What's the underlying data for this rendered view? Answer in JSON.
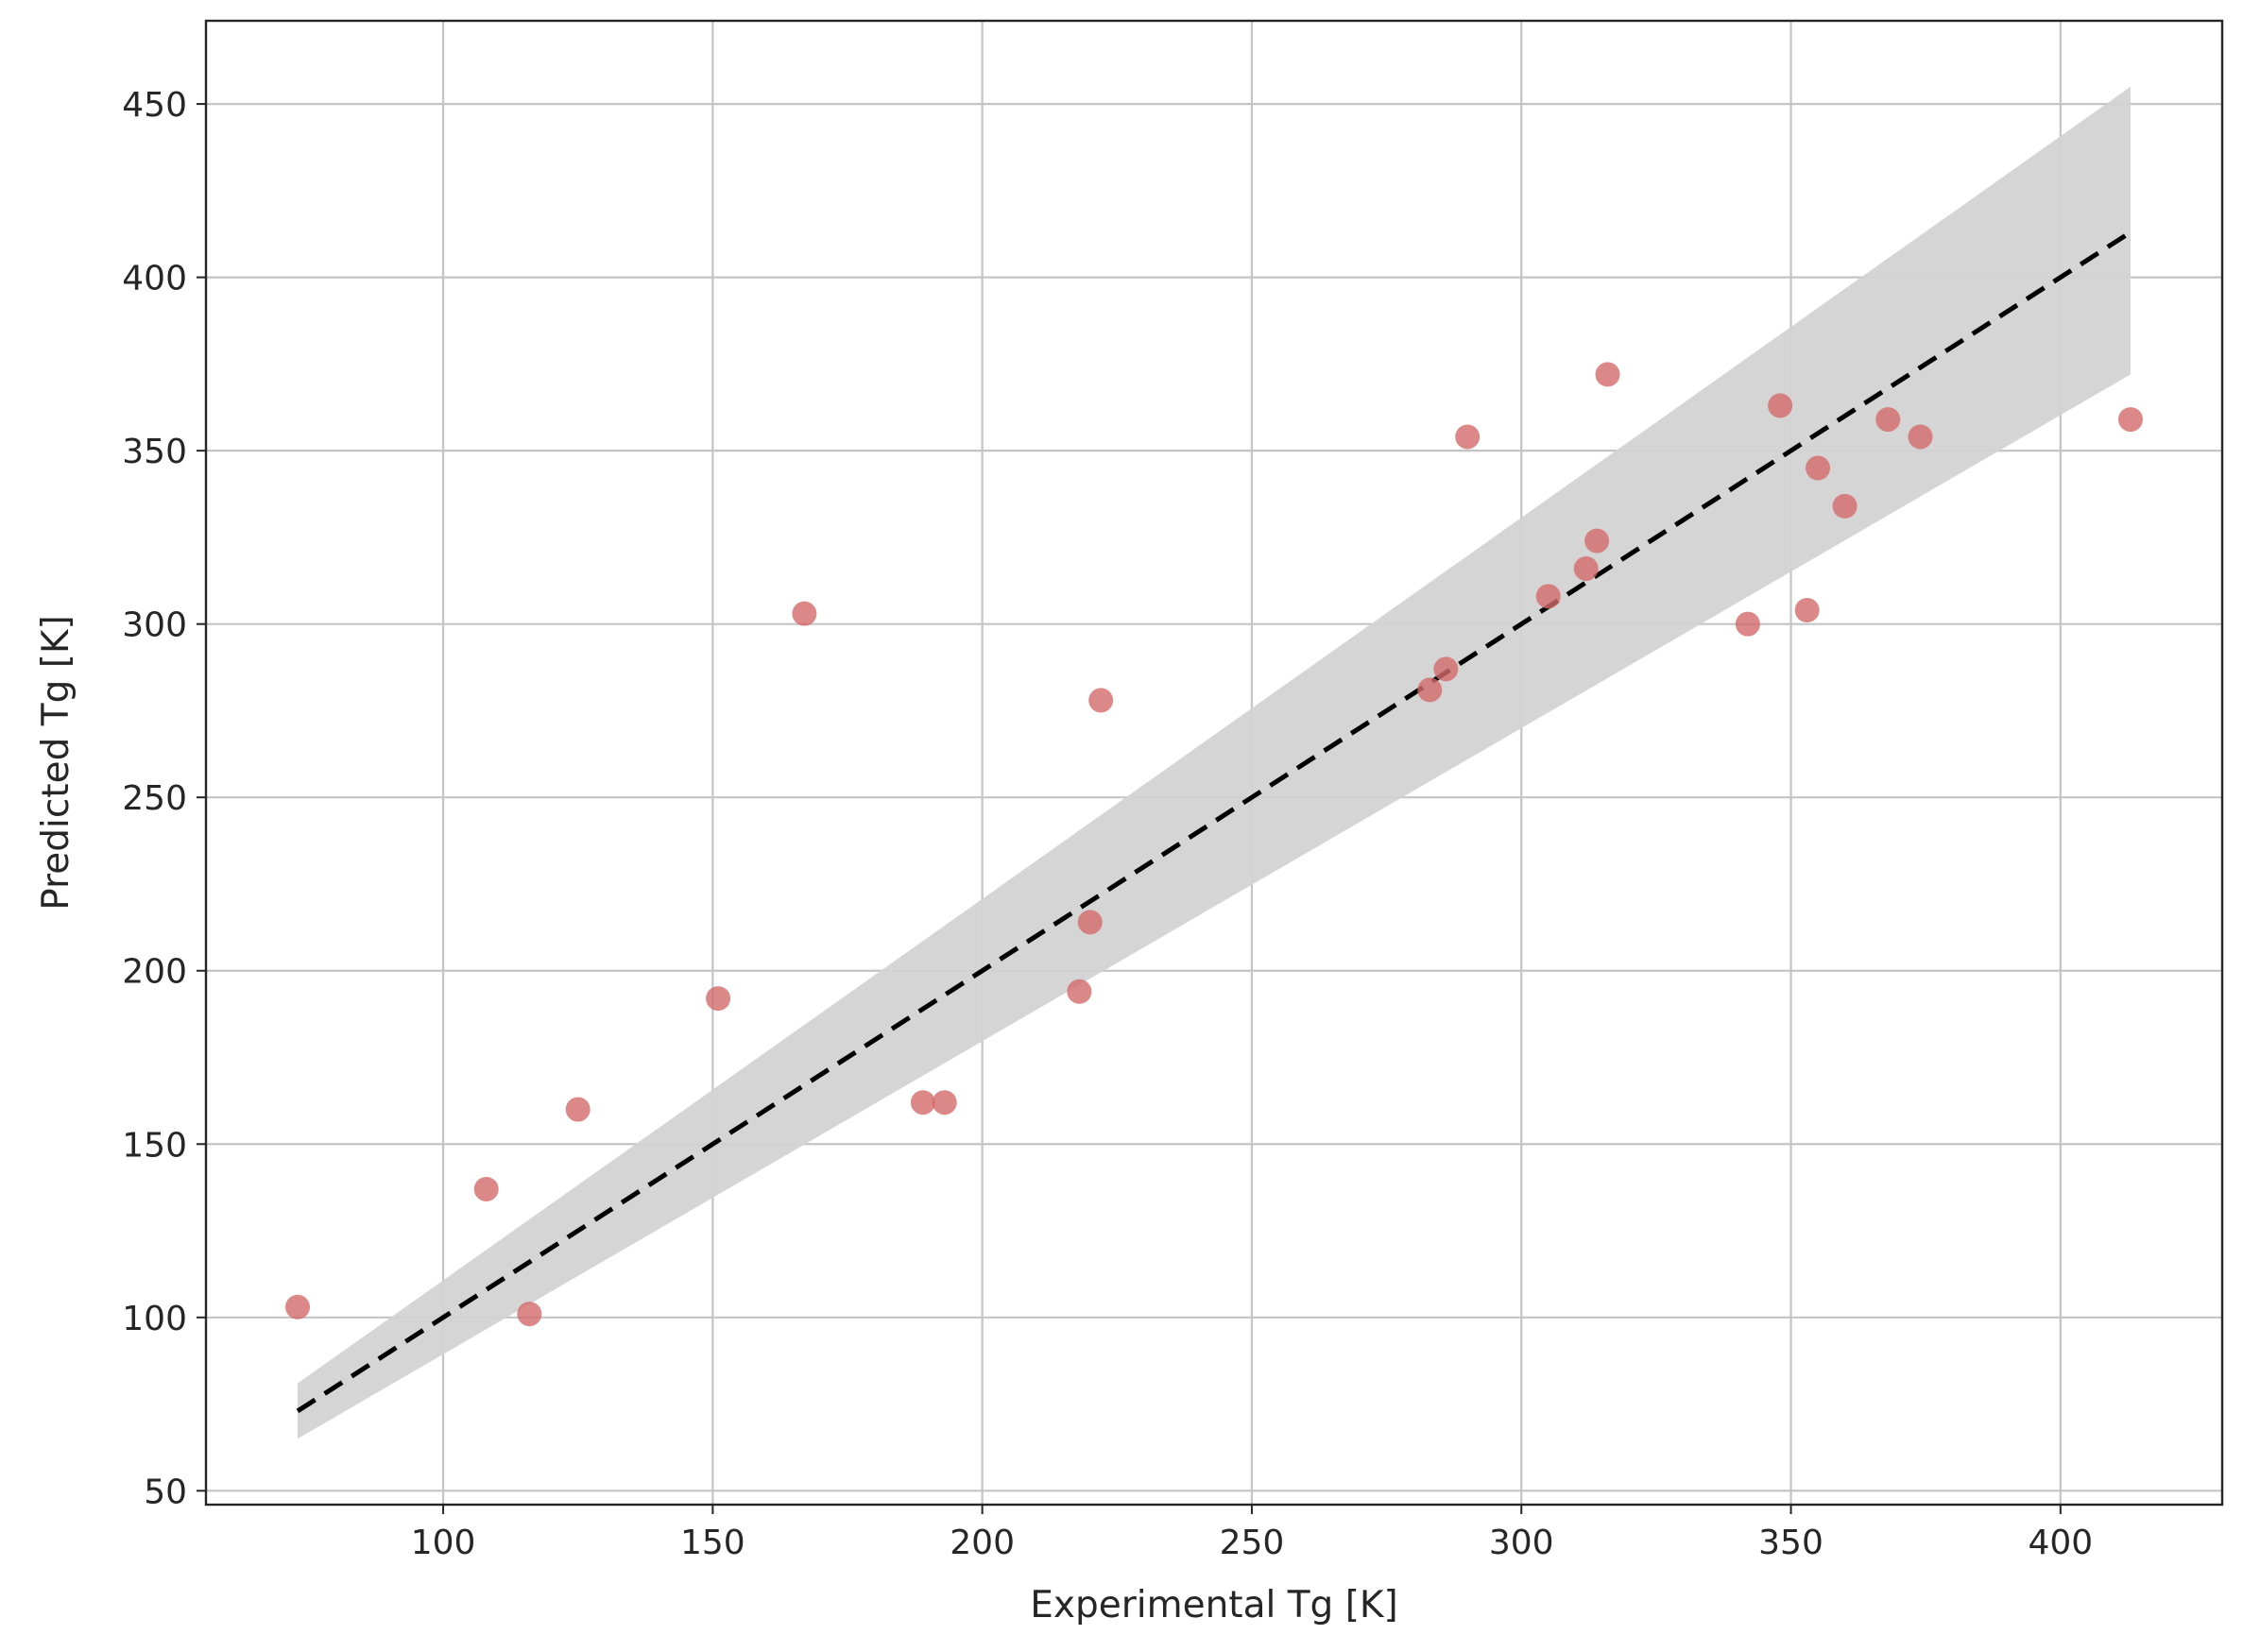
{
  "chart_data": {
    "type": "scatter",
    "xlabel": "Experimental Tg [K]",
    "ylabel": "Predicted Tg [K]",
    "xlim": [
      56,
      430
    ],
    "ylim": [
      46,
      474
    ],
    "xticks": [
      "100",
      "150",
      "200",
      "250",
      "300",
      "350",
      "400"
    ],
    "yticks": [
      "50",
      "100",
      "150",
      "200",
      "250",
      "300",
      "350",
      "400",
      "450"
    ],
    "grid": true,
    "colors": {
      "points": "#d46a6a",
      "band": "#d3d3d3",
      "line": "#000000",
      "grid": "#c4c4c4"
    },
    "points": [
      {
        "x": 73,
        "y": 103
      },
      {
        "x": 108,
        "y": 137
      },
      {
        "x": 116,
        "y": 101
      },
      {
        "x": 125,
        "y": 160
      },
      {
        "x": 151,
        "y": 192
      },
      {
        "x": 167,
        "y": 303
      },
      {
        "x": 189,
        "y": 162
      },
      {
        "x": 193,
        "y": 162
      },
      {
        "x": 218,
        "y": 194
      },
      {
        "x": 220,
        "y": 214
      },
      {
        "x": 222,
        "y": 278
      },
      {
        "x": 283,
        "y": 281
      },
      {
        "x": 286,
        "y": 287
      },
      {
        "x": 290,
        "y": 354
      },
      {
        "x": 305,
        "y": 308
      },
      {
        "x": 312,
        "y": 316
      },
      {
        "x": 314,
        "y": 324
      },
      {
        "x": 316,
        "y": 372
      },
      {
        "x": 342,
        "y": 300
      },
      {
        "x": 348,
        "y": 363
      },
      {
        "x": 353,
        "y": 304
      },
      {
        "x": 355,
        "y": 345
      },
      {
        "x": 360,
        "y": 334
      },
      {
        "x": 368,
        "y": 359
      },
      {
        "x": 374,
        "y": 354
      },
      {
        "x": 413,
        "y": 359
      }
    ],
    "identity_line": {
      "x": [
        73,
        413
      ],
      "y": [
        73,
        413
      ]
    },
    "band": {
      "x": [
        73,
        413
      ],
      "upper": [
        81,
        455
      ],
      "lower": [
        65,
        372
      ]
    }
  }
}
